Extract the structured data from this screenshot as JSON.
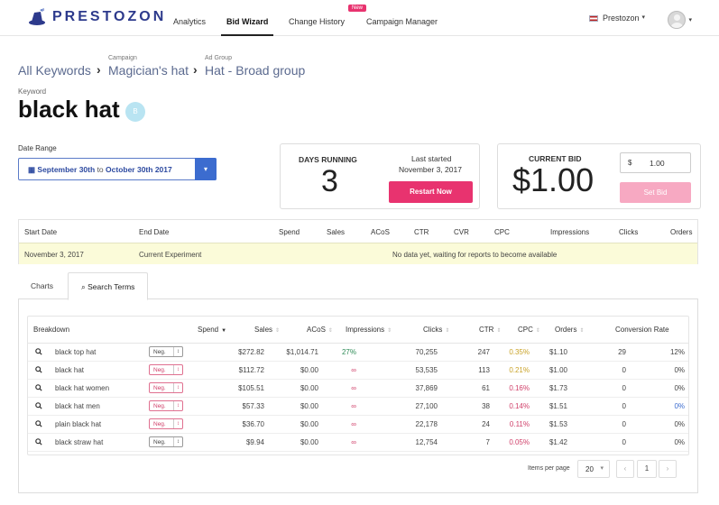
{
  "brand": {
    "name": "PRESTOZON"
  },
  "nav": {
    "analytics": "Analytics",
    "bid_wizard": "Bid Wizard",
    "change_history": "Change History",
    "campaign_manager": "Campaign Manager",
    "new_badge": "New",
    "account": "Prestozon"
  },
  "breadcrumb": {
    "all_keywords": "All Keywords",
    "campaign_label": "Campaign",
    "campaign": "Magician's hat",
    "adgroup_label": "Ad Group",
    "adgroup": "Hat - Broad group"
  },
  "keyword": {
    "label": "Keyword",
    "title": "black hat",
    "badge": "B"
  },
  "date_range": {
    "label": "Date Range",
    "start": "September 30th",
    "to": "to",
    "end": "October 30th 2017"
  },
  "days_running": {
    "label": "DAYS RUNNING",
    "value": "3",
    "last_started_label": "Last started",
    "last_started": "November 3, 2017",
    "restart_label": "Restart Now"
  },
  "current_bid": {
    "label": "CURRENT BID",
    "value": "$1.00",
    "currency": "$",
    "input_value": "1.00",
    "set_label": "Set Bid"
  },
  "experiments": {
    "headers": [
      "Start Date",
      "End Date",
      "Spend",
      "Sales",
      "ACoS",
      "CTR",
      "CVR",
      "CPC",
      "Impressions",
      "Clicks",
      "Orders"
    ],
    "row": {
      "start": "November 3, 2017",
      "end": "Current Experiment",
      "message": "No data yet, waiting for reports to become available"
    }
  },
  "tabs": {
    "charts": "Charts",
    "search_terms": "Search Terms"
  },
  "search_terms": {
    "headers": {
      "breakdown": "Breakdown",
      "spend": "Spend",
      "sales": "Sales",
      "acos": "ACoS",
      "impressions": "Impressions",
      "clicks": "Clicks",
      "ctr": "CTR",
      "cpc": "CPC",
      "orders": "Orders",
      "conversion": "Conversion Rate"
    },
    "neg_label": "Neg.",
    "rows": [
      {
        "term": "black top hat",
        "neg_style": "gray",
        "spend": "$272.82",
        "sales": "$1,014.71",
        "acos": "27%",
        "acos_color": "#2e8b57",
        "impressions": "70,255",
        "clicks": "247",
        "ctr": "0.35%",
        "ctr_color": "#c9a227",
        "cpc": "$1.10",
        "orders": "29",
        "conversion": "12%",
        "conv_color": "#444"
      },
      {
        "term": "black hat",
        "neg_style": "red",
        "spend": "$112.72",
        "sales": "$0.00",
        "acos": "∞",
        "acos_color": "#d0406a",
        "impressions": "53,535",
        "clicks": "113",
        "ctr": "0.21%",
        "ctr_color": "#c9a227",
        "cpc": "$1.00",
        "orders": "0",
        "conversion": "0%",
        "conv_color": "#444"
      },
      {
        "term": "black hat women",
        "neg_style": "red",
        "spend": "$105.51",
        "sales": "$0.00",
        "acos": "∞",
        "acos_color": "#d0406a",
        "impressions": "37,869",
        "clicks": "61",
        "ctr": "0.16%",
        "ctr_color": "#d0406a",
        "cpc": "$1.73",
        "orders": "0",
        "conversion": "0%",
        "conv_color": "#444"
      },
      {
        "term": "black hat men",
        "neg_style": "red",
        "spend": "$57.33",
        "sales": "$0.00",
        "acos": "∞",
        "acos_color": "#d0406a",
        "impressions": "27,100",
        "clicks": "38",
        "ctr": "0.14%",
        "ctr_color": "#d0406a",
        "cpc": "$1.51",
        "orders": "0",
        "conversion": "0%",
        "conv_color": "#3c6ccf"
      },
      {
        "term": "plain black hat",
        "neg_style": "red",
        "spend": "$36.70",
        "sales": "$0.00",
        "acos": "∞",
        "acos_color": "#d0406a",
        "impressions": "22,178",
        "clicks": "24",
        "ctr": "0.11%",
        "ctr_color": "#d0406a",
        "cpc": "$1.53",
        "orders": "0",
        "conversion": "0%",
        "conv_color": "#444"
      },
      {
        "term": "black straw hat",
        "neg_style": "gray",
        "spend": "$9.94",
        "sales": "$0.00",
        "acos": "∞",
        "acos_color": "#d0406a",
        "impressions": "12,754",
        "clicks": "7",
        "ctr": "0.05%",
        "ctr_color": "#d0406a",
        "cpc": "$1.42",
        "orders": "0",
        "conversion": "0%",
        "conv_color": "#444"
      }
    ]
  },
  "pagination": {
    "items_per_page_label": "Items per page",
    "per_page": "20",
    "page": "1",
    "prev": "‹",
    "next": "›"
  }
}
